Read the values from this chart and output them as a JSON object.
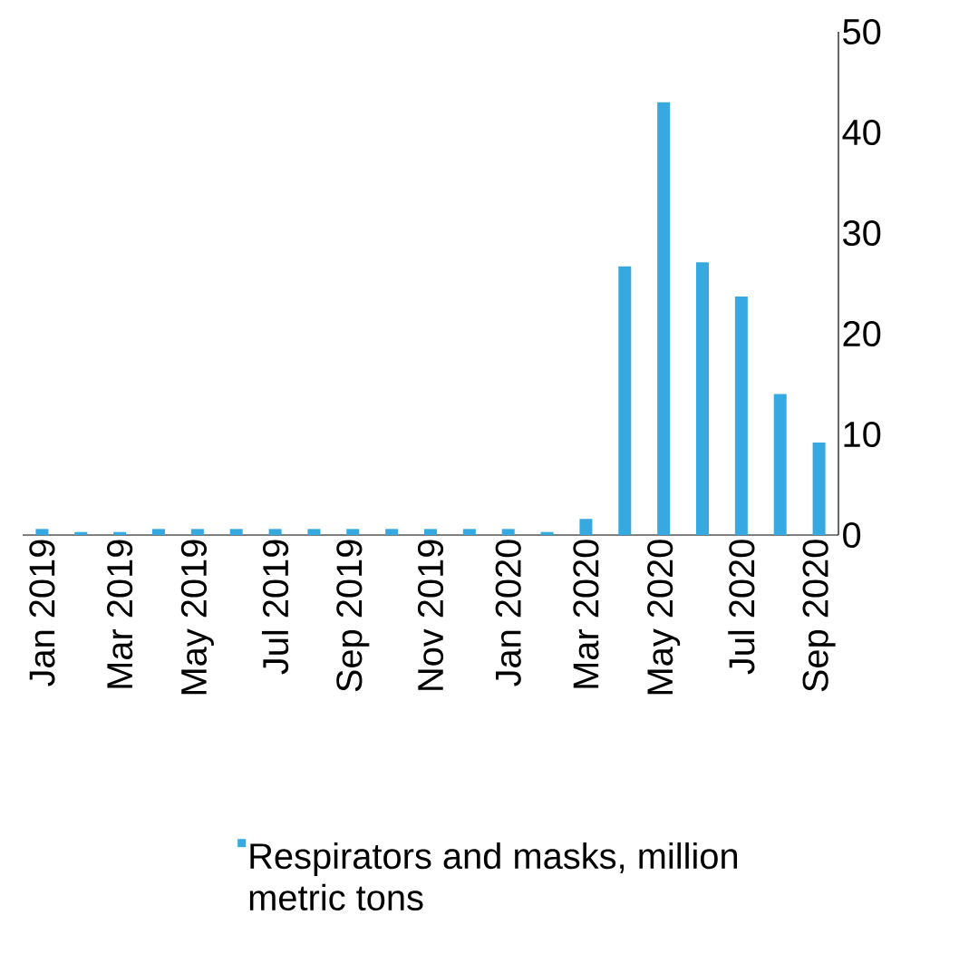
{
  "chart_data": {
    "type": "bar",
    "categories": [
      "Jan 2019",
      null,
      "Mar 2019",
      null,
      "May 2019",
      null,
      "Jul 2019",
      null,
      "Sep 2019",
      null,
      "Nov 2019",
      null,
      "Jan 2020",
      null,
      "Mar 2020",
      null,
      "May 2020",
      null,
      "Jul 2020",
      null,
      "Sep 2020"
    ],
    "series": [
      {
        "name": "Respirators and masks, million metric tons",
        "color": "#36a9e1",
        "values": [
          0.6,
          0.3,
          0.3,
          0.6,
          0.6,
          0.6,
          0.6,
          0.6,
          0.6,
          0.6,
          0.6,
          0.6,
          0.6,
          0.3,
          1.6,
          26.7,
          43,
          27.1,
          23.7,
          14,
          9.2
        ]
      }
    ],
    "ylim": [
      0,
      50
    ],
    "yticks": [
      0,
      10,
      20,
      30,
      40,
      50
    ],
    "grid": false,
    "legend": "bottom"
  }
}
